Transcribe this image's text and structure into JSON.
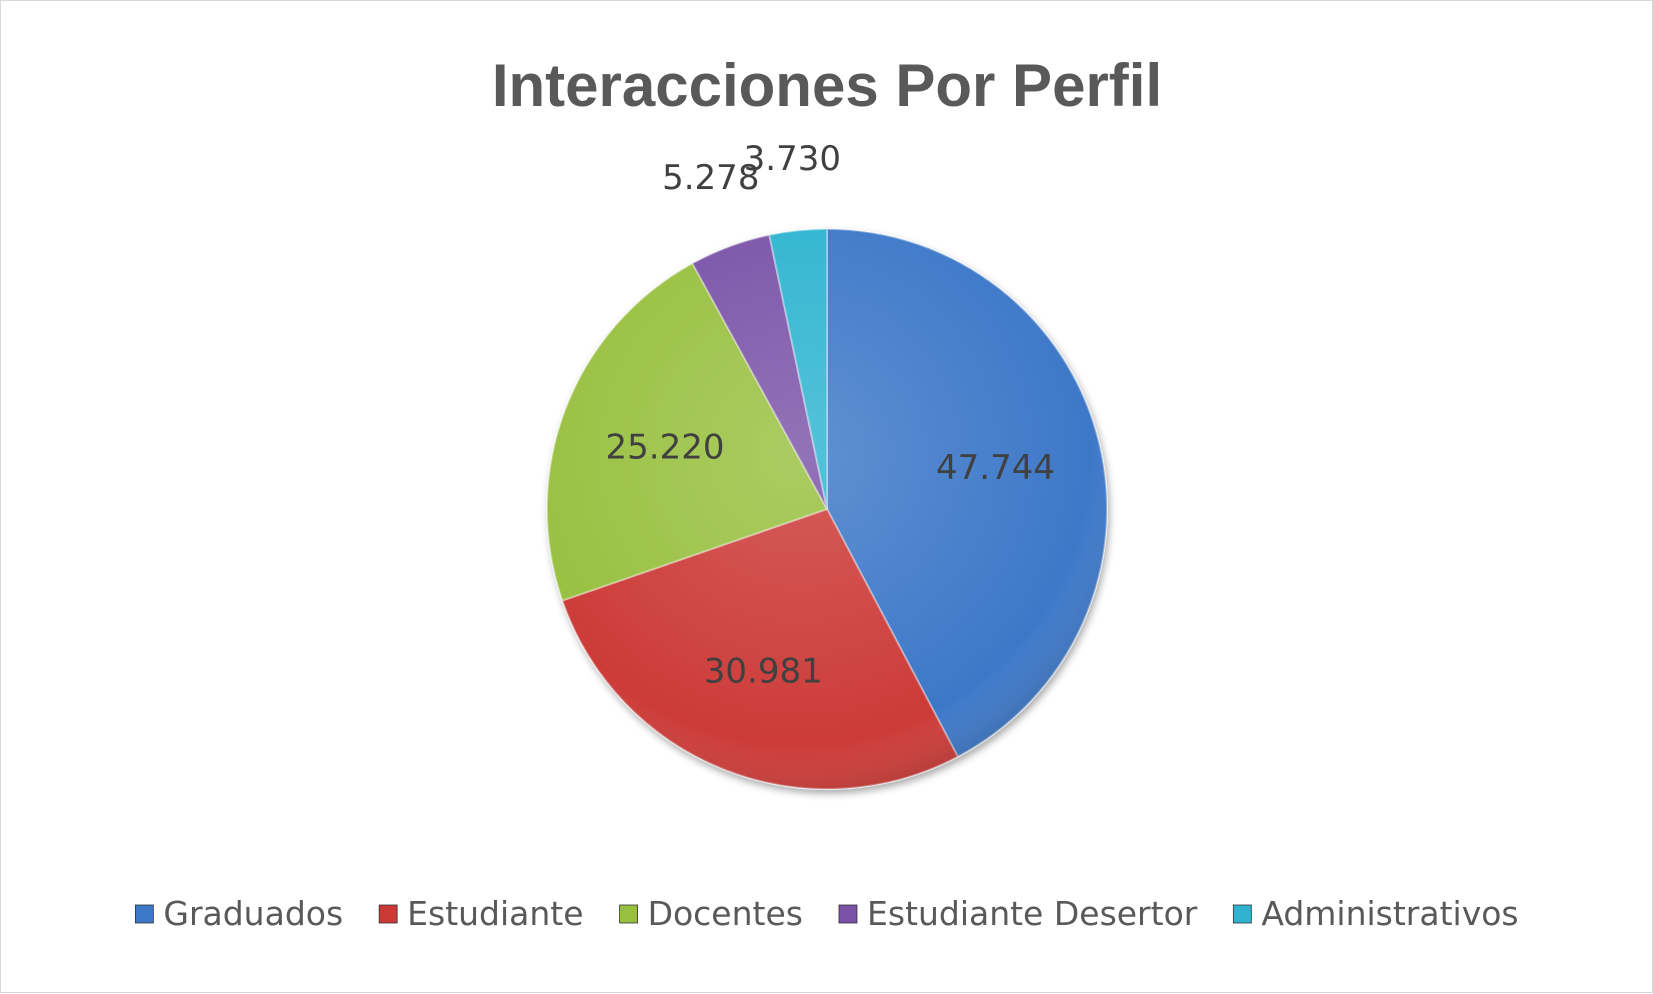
{
  "chart_data": {
    "type": "pie",
    "title": "Interacciones Por Perfil",
    "categories": [
      "Graduados",
      "Estudiante",
      "Docentes",
      "Estudiante Desertor",
      "Administrativos"
    ],
    "values": [
      47744,
      30981,
      25220,
      5278,
      3730
    ],
    "labels": [
      "47.744",
      "30.981",
      "25.220",
      "5.278",
      "3.730"
    ],
    "colors": [
      "#3c78c8",
      "#cc3a38",
      "#98c040",
      "#7a52a8",
      "#2eb4d0"
    ],
    "legend_position": "bottom"
  }
}
